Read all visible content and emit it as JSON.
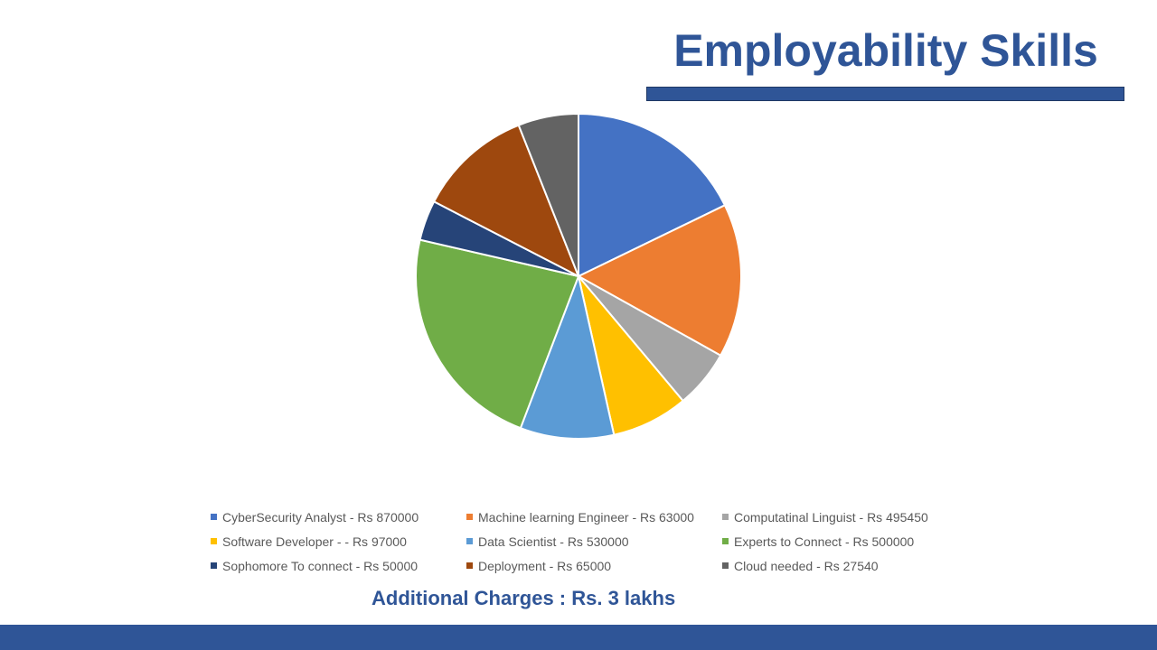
{
  "slide": {
    "title": "Employability Skills",
    "note": "Additional Charges : Rs. 3 lakhs",
    "accent_color": "#2F5597"
  },
  "chart_data": {
    "type": "pie",
    "title": "",
    "start_angle_deg": 0,
    "direction": "clockwise",
    "slices": [
      {
        "label": "CyberSecurity Analyst - Rs 870000",
        "value": 17.8,
        "color": "#4472C4"
      },
      {
        "label": "Machine learning Engineer - Rs 63000",
        "value": 15.3,
        "color": "#ED7D31"
      },
      {
        "label": "Computatinal Linguist - Rs 495450",
        "value": 5.8,
        "color": "#A5A5A5"
      },
      {
        "label": "Software Developer - - Rs 97000",
        "value": 7.6,
        "color": "#FFC000"
      },
      {
        "label": "Data Scientist - Rs 530000",
        "value": 9.3,
        "color": "#5B9BD5"
      },
      {
        "label": "Experts to Connect - Rs 500000",
        "value": 22.8,
        "color": "#70AD47"
      },
      {
        "label": "Sophomore To connect - Rs 50000",
        "value": 4.0,
        "color": "#264478"
      },
      {
        "label": "Deployment - Rs 65000",
        "value": 11.4,
        "color": "#9E480E"
      },
      {
        "label": "Cloud needed - Rs 27540",
        "value": 6.0,
        "color": "#636363"
      }
    ],
    "legend_position": "bottom"
  }
}
